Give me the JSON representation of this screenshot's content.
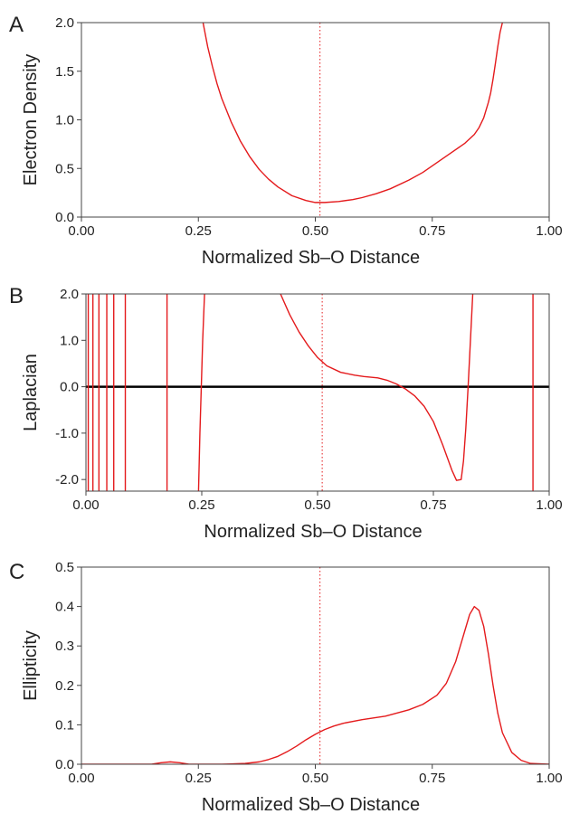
{
  "chart_data": [
    {
      "panel": "A",
      "type": "line",
      "xlabel": "Normalized Sb–O Distance",
      "ylabel": "Electron Density",
      "xlim": [
        0,
        1
      ],
      "ylim": [
        0,
        2
      ],
      "xticks": [
        "0.00",
        "0.25",
        "0.50",
        "0.75",
        "1.00"
      ],
      "yticks": [
        "0.0",
        "0.5",
        "1.0",
        "1.5",
        "2.0"
      ],
      "reference_line_x": 0.51,
      "series": [
        {
          "color": "#e41a1c",
          "x": [
            0.26,
            0.27,
            0.28,
            0.29,
            0.3,
            0.32,
            0.34,
            0.36,
            0.38,
            0.4,
            0.42,
            0.45,
            0.48,
            0.5,
            0.52,
            0.55,
            0.58,
            0.6,
            0.63,
            0.66,
            0.7,
            0.73,
            0.76,
            0.79,
            0.82,
            0.84,
            0.85,
            0.86,
            0.87,
            0.875,
            0.88,
            0.885,
            0.89,
            0.895,
            0.9
          ],
          "y": [
            2.0,
            1.75,
            1.55,
            1.37,
            1.22,
            0.98,
            0.78,
            0.62,
            0.49,
            0.39,
            0.31,
            0.22,
            0.17,
            0.15,
            0.15,
            0.16,
            0.18,
            0.2,
            0.24,
            0.29,
            0.38,
            0.46,
            0.56,
            0.66,
            0.76,
            0.85,
            0.92,
            1.02,
            1.18,
            1.28,
            1.42,
            1.58,
            1.75,
            1.9,
            2.0
          ]
        }
      ]
    },
    {
      "panel": "B",
      "type": "line",
      "xlabel": "Normalized Sb–O Distance",
      "ylabel": "Laplacian",
      "xlim": [
        0,
        1
      ],
      "ylim": [
        -2.25,
        2
      ],
      "xticks": [
        "0.00",
        "0.25",
        "0.50",
        "0.75",
        "1.00"
      ],
      "yticks": [
        "-2.0",
        "-1.0",
        "0.0",
        "1.0",
        "2.0"
      ],
      "reference_line_x": 0.51,
      "zero_line": 0,
      "spikes_x": [
        0.005,
        0.015,
        0.028,
        0.045,
        0.06,
        0.085,
        0.175,
        0.965
      ],
      "series": [
        {
          "color": "#e41a1c",
          "x": [
            0.243,
            0.246,
            0.249,
            0.252,
            0.256
          ],
          "y": [
            -2.25,
            -1.0,
            0.0,
            1.0,
            2.0
          ]
        },
        {
          "color": "#e41a1c",
          "x": [
            0.42,
            0.44,
            0.46,
            0.48,
            0.5,
            0.52,
            0.55,
            0.58,
            0.6,
            0.63,
            0.65,
            0.67,
            0.69,
            0.71,
            0.73,
            0.75,
            0.77,
            0.79,
            0.8,
            0.81,
            0.815,
            0.82,
            0.825,
            0.83,
            0.835
          ],
          "y": [
            2.0,
            1.55,
            1.18,
            0.88,
            0.63,
            0.45,
            0.31,
            0.25,
            0.22,
            0.19,
            0.14,
            0.06,
            -0.05,
            -0.2,
            -0.42,
            -0.75,
            -1.25,
            -1.8,
            -2.02,
            -2.0,
            -1.6,
            -0.9,
            0.0,
            1.0,
            2.0
          ]
        }
      ]
    },
    {
      "panel": "C",
      "type": "line",
      "xlabel": "Normalized Sb–O Distance",
      "ylabel": "Ellipticity",
      "xlim": [
        0,
        1
      ],
      "ylim": [
        0,
        0.5
      ],
      "xticks": [
        "0.00",
        "0.25",
        "0.50",
        "0.75",
        "1.00"
      ],
      "yticks": [
        "0.0",
        "0.1",
        "0.2",
        "0.3",
        "0.4",
        "0.5"
      ],
      "reference_line_x": 0.51,
      "series": [
        {
          "color": "#e41a1c",
          "x": [
            0.0,
            0.15,
            0.17,
            0.19,
            0.21,
            0.23,
            0.3,
            0.35,
            0.38,
            0.4,
            0.42,
            0.44,
            0.46,
            0.48,
            0.5,
            0.52,
            0.54,
            0.56,
            0.6,
            0.65,
            0.7,
            0.73,
            0.76,
            0.78,
            0.8,
            0.82,
            0.83,
            0.84,
            0.85,
            0.86,
            0.87,
            0.88,
            0.89,
            0.9,
            0.92,
            0.94,
            0.96,
            1.0
          ],
          "y": [
            0.0,
            0.0,
            0.004,
            0.006,
            0.004,
            0.0,
            0.0,
            0.002,
            0.006,
            0.012,
            0.02,
            0.032,
            0.046,
            0.062,
            0.076,
            0.088,
            0.097,
            0.104,
            0.113,
            0.122,
            0.138,
            0.152,
            0.175,
            0.205,
            0.26,
            0.34,
            0.38,
            0.4,
            0.39,
            0.35,
            0.28,
            0.2,
            0.13,
            0.08,
            0.03,
            0.01,
            0.002,
            0.0
          ]
        }
      ]
    }
  ]
}
